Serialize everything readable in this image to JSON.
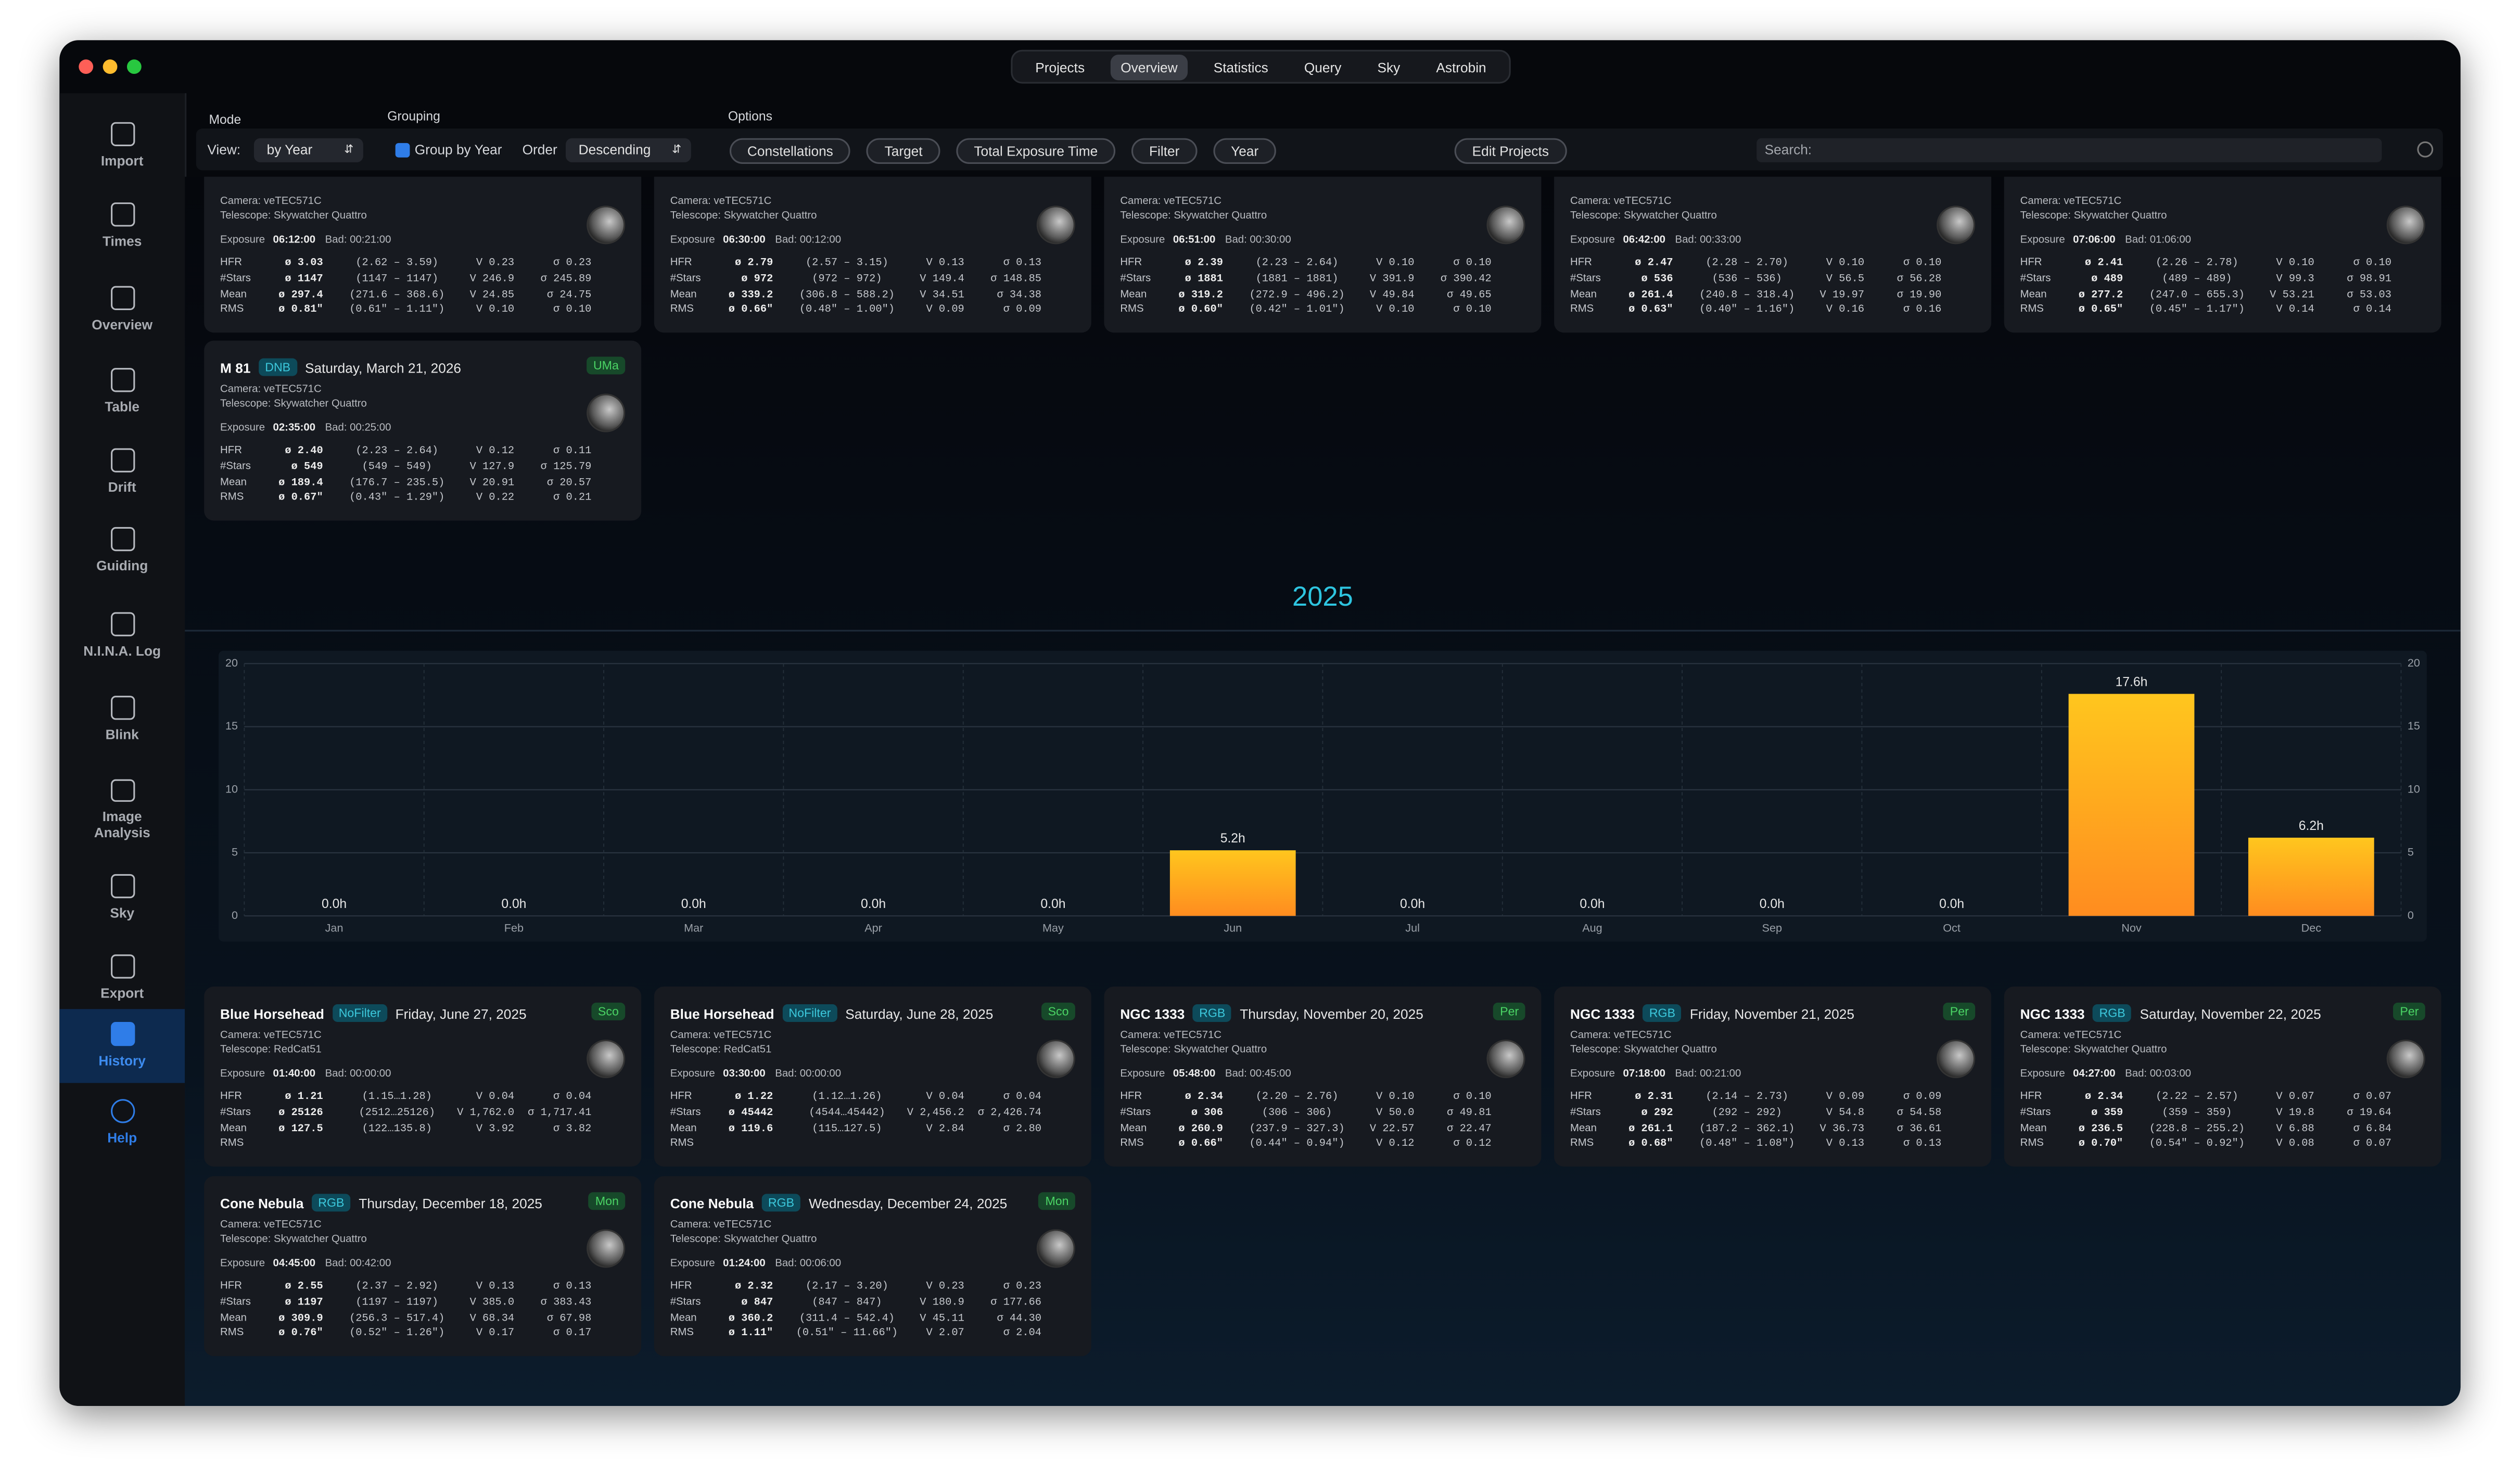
{
  "window": {
    "tabs": [
      "Projects",
      "Overview",
      "Statistics",
      "Query",
      "Sky",
      "Astrobin"
    ]
  },
  "sidebar": [
    "Import",
    "Times",
    "Overview",
    "Table",
    "Drift",
    "Guiding",
    "N.I.N.A. Log",
    "Blink",
    "Image Analysis",
    "Sky",
    "Export",
    "History",
    "Help"
  ],
  "toolbar": {
    "mode_label": "Mode",
    "view_label": "View:",
    "view_value": "by Year",
    "grouping_label": "Grouping",
    "group_by_year": "Group by Year",
    "order_label": "Order",
    "order_value": "Descending",
    "options_label": "Options",
    "options": [
      "Constellations",
      "Target",
      "Total Exposure Time",
      "Filter",
      "Year"
    ],
    "edit_projects": "Edit Projects",
    "search_placeholder": "Search:"
  },
  "cards_2026": [
    {
      "camera": "Camera: veTEC571C",
      "telescope": "Telescope: Skywatcher Quattro",
      "exposure_label": "Exposure",
      "exposure": "06:12:00",
      "bad": "Bad: 00:21:00",
      "stats": [
        [
          "HFR",
          "ø 3.03",
          "(2.62 – 3.59)",
          "V 0.23",
          "σ 0.23"
        ],
        [
          "#Stars",
          "ø 1147",
          "(1147 – 1147)",
          "V 246.9",
          "σ 245.89"
        ],
        [
          "Mean",
          "ø 297.4",
          "(271.6 – 368.6)",
          "V 24.85",
          "σ 24.75"
        ],
        [
          "RMS",
          "ø 0.81\"",
          "(0.61\" – 1.11\")",
          "V 0.10",
          "σ 0.10"
        ]
      ]
    },
    {
      "camera": "Camera: veTEC571C",
      "telescope": "Telescope: Skywatcher Quattro",
      "exposure_label": "Exposure",
      "exposure": "06:30:00",
      "bad": "Bad: 00:12:00",
      "stats": [
        [
          "HFR",
          "ø 2.79",
          "(2.57 – 3.15)",
          "V 0.13",
          "σ 0.13"
        ],
        [
          "#Stars",
          "ø 972",
          "(972 – 972)",
          "V 149.4",
          "σ 148.85"
        ],
        [
          "Mean",
          "ø 339.2",
          "(306.8 – 588.2)",
          "V 34.51",
          "σ 34.38"
        ],
        [
          "RMS",
          "ø 0.66\"",
          "(0.48\" – 1.00\")",
          "V 0.09",
          "σ 0.09"
        ]
      ]
    },
    {
      "camera": "Camera: veTEC571C",
      "telescope": "Telescope: Skywatcher Quattro",
      "exposure_label": "Exposure",
      "exposure": "06:51:00",
      "bad": "Bad: 00:30:00",
      "stats": [
        [
          "HFR",
          "ø 2.39",
          "(2.23 – 2.64)",
          "V 0.10",
          "σ 0.10"
        ],
        [
          "#Stars",
          "ø 1881",
          "(1881 – 1881)",
          "V 391.9",
          "σ 390.42"
        ],
        [
          "Mean",
          "ø 319.2",
          "(272.9 – 496.2)",
          "V 49.84",
          "σ 49.65"
        ],
        [
          "RMS",
          "ø 0.60\"",
          "(0.42\" – 1.01\")",
          "V 0.10",
          "σ 0.10"
        ]
      ]
    },
    {
      "camera": "Camera: veTEC571C",
      "telescope": "Telescope: Skywatcher Quattro",
      "exposure_label": "Exposure",
      "exposure": "06:42:00",
      "bad": "Bad: 00:33:00",
      "stats": [
        [
          "HFR",
          "ø 2.47",
          "(2.28 – 2.70)",
          "V 0.10",
          "σ 0.10"
        ],
        [
          "#Stars",
          "ø 536",
          "(536 – 536)",
          "V 56.5",
          "σ 56.28"
        ],
        [
          "Mean",
          "ø 261.4",
          "(240.8 – 318.4)",
          "V 19.97",
          "σ 19.90"
        ],
        [
          "RMS",
          "ø 0.63\"",
          "(0.40\" – 1.16\")",
          "V 0.16",
          "σ 0.16"
        ]
      ]
    },
    {
      "camera": "Camera: veTEC571C",
      "telescope": "Telescope: Skywatcher Quattro",
      "exposure_label": "Exposure",
      "exposure": "07:06:00",
      "bad": "Bad: 01:06:00",
      "stats": [
        [
          "HFR",
          "ø 2.41",
          "(2.26 – 2.78)",
          "V 0.10",
          "σ 0.10"
        ],
        [
          "#Stars",
          "ø 489",
          "(489 – 489)",
          "V 99.3",
          "σ 98.91"
        ],
        [
          "Mean",
          "ø 277.2",
          "(247.0 – 655.3)",
          "V 53.21",
          "σ 53.03"
        ],
        [
          "RMS",
          "ø 0.65\"",
          "(0.45\" – 1.17\")",
          "V 0.14",
          "σ 0.14"
        ]
      ]
    },
    {
      "title": "M 81",
      "filter": "DNB",
      "date": "Saturday, March 21, 2026",
      "constellation": "UMa",
      "camera": "Camera: veTEC571C",
      "telescope": "Telescope: Skywatcher Quattro",
      "exposure_label": "Exposure",
      "exposure": "02:35:00",
      "bad": "Bad: 00:25:00",
      "stats": [
        [
          "HFR",
          "ø 2.40",
          "(2.23 – 2.64)",
          "V 0.12",
          "σ 0.11"
        ],
        [
          "#Stars",
          "ø 549",
          "(549 – 549)",
          "V 127.9",
          "σ 125.79"
        ],
        [
          "Mean",
          "ø 189.4",
          "(176.7 – 235.5)",
          "V 20.91",
          "σ 20.57"
        ],
        [
          "RMS",
          "ø 0.67\"",
          "(0.43\" – 1.29\")",
          "V 0.22",
          "σ 0.21"
        ]
      ]
    }
  ],
  "year_heading": "2025",
  "chart_data": {
    "type": "bar",
    "categories": [
      "Jan",
      "Feb",
      "Mar",
      "Apr",
      "May",
      "Jun",
      "Jul",
      "Aug",
      "Sep",
      "Oct",
      "Nov",
      "Dec"
    ],
    "values": [
      0,
      0,
      0,
      0,
      0,
      5.2,
      0,
      0,
      0,
      0,
      17.6,
      6.2
    ],
    "value_labels": [
      "0.0h",
      "0.0h",
      "0.0h",
      "0.0h",
      "0.0h",
      "5.2h",
      "0.0h",
      "0.0h",
      "0.0h",
      "0.0h",
      "17.6h",
      "6.2h"
    ],
    "gradient": [
      "#ffc61e",
      "#ff8c1f"
    ],
    "ylim": [
      0,
      20
    ],
    "yticks": [
      0,
      5,
      10,
      15,
      20
    ],
    "y2lim": [
      0,
      20
    ],
    "y2ticks": [
      0,
      5,
      10,
      15,
      20
    ],
    "grid": true
  },
  "cards_2025": [
    {
      "title": "Blue Horsehead",
      "filter": "NoFilter",
      "date": "Friday, June 27, 2025",
      "constellation": "Sco",
      "camera": "Camera: veTEC571C",
      "telescope": "Telescope: RedCat51",
      "exposure_label": "Exposure",
      "exposure": "01:40:00",
      "bad": "Bad: 00:00:00",
      "stats": [
        [
          "HFR",
          "ø 1.21",
          "(1.15…1.28)",
          "V 0.04",
          "σ 0.04"
        ],
        [
          "#Stars",
          "ø 25126",
          "(2512…25126)",
          "V 1,762.0",
          "σ 1,717.41"
        ],
        [
          "Mean",
          "ø 127.5",
          "(122…135.8)",
          "V 3.92",
          "σ 3.82"
        ],
        [
          "RMS"
        ]
      ]
    },
    {
      "title": "Blue Horsehead",
      "filter": "NoFilter",
      "date": "Saturday, June 28, 2025",
      "constellation": "Sco",
      "camera": "Camera: veTEC571C",
      "telescope": "Telescope: RedCat51",
      "exposure_label": "Exposure",
      "exposure": "03:30:00",
      "bad": "Bad: 00:00:00",
      "stats": [
        [
          "HFR",
          "ø 1.22",
          "(1.12…1.26)",
          "V 0.04",
          "σ 0.04"
        ],
        [
          "#Stars",
          "ø 45442",
          "(4544…45442)",
          "V 2,456.2",
          "σ 2,426.74"
        ],
        [
          "Mean",
          "ø 119.6",
          "(115…127.5)",
          "V 2.84",
          "σ 2.80"
        ],
        [
          "RMS"
        ]
      ]
    },
    {
      "title": "NGC 1333",
      "filter": "RGB",
      "date": "Thursday, November 20, 2025",
      "constellation": "Per",
      "camera": "Camera: veTEC571C",
      "telescope": "Telescope: Skywatcher Quattro",
      "exposure_label": "Exposure",
      "exposure": "05:48:00",
      "bad": "Bad: 00:45:00",
      "stats": [
        [
          "HFR",
          "ø 2.34",
          "(2.20 – 2.76)",
          "V 0.10",
          "σ 0.10"
        ],
        [
          "#Stars",
          "ø 306",
          "(306 – 306)",
          "V 50.0",
          "σ 49.81"
        ],
        [
          "Mean",
          "ø 260.9",
          "(237.9 – 327.3)",
          "V 22.57",
          "σ 22.47"
        ],
        [
          "RMS",
          "ø 0.66\"",
          "(0.44\" – 0.94\")",
          "V 0.12",
          "σ 0.12"
        ]
      ]
    },
    {
      "title": "NGC 1333",
      "filter": "RGB",
      "date": "Friday, November 21, 2025",
      "constellation": "Per",
      "camera": "Camera: veTEC571C",
      "telescope": "Telescope: Skywatcher Quattro",
      "exposure_label": "Exposure",
      "exposure": "07:18:00",
      "bad": "Bad: 00:21:00",
      "stats": [
        [
          "HFR",
          "ø 2.31",
          "(2.14 – 2.73)",
          "V 0.09",
          "σ 0.09"
        ],
        [
          "#Stars",
          "ø 292",
          "(292 – 292)",
          "V 54.8",
          "σ 54.58"
        ],
        [
          "Mean",
          "ø 261.1",
          "(187.2 – 362.1)",
          "V 36.73",
          "σ 36.61"
        ],
        [
          "RMS",
          "ø 0.68\"",
          "(0.48\" – 1.08\")",
          "V 0.13",
          "σ 0.13"
        ]
      ]
    },
    {
      "title": "NGC 1333",
      "filter": "RGB",
      "date": "Saturday, November 22, 2025",
      "constellation": "Per",
      "camera": "Camera: veTEC571C",
      "telescope": "Telescope: Skywatcher Quattro",
      "exposure_label": "Exposure",
      "exposure": "04:27:00",
      "bad": "Bad: 00:03:00",
      "stats": [
        [
          "HFR",
          "ø 2.34",
          "(2.22 – 2.57)",
          "V 0.07",
          "σ 0.07"
        ],
        [
          "#Stars",
          "ø 359",
          "(359 – 359)",
          "V 19.8",
          "σ 19.64"
        ],
        [
          "Mean",
          "ø 236.5",
          "(228.8 – 255.2)",
          "V 6.88",
          "σ 6.84"
        ],
        [
          "RMS",
          "ø 0.70\"",
          "(0.54\" – 0.92\")",
          "V 0.08",
          "σ 0.07"
        ]
      ]
    },
    {
      "title": "Cone Nebula",
      "filter": "RGB",
      "date": "Thursday, December 18, 2025",
      "constellation": "Mon",
      "camera": "Camera: veTEC571C",
      "telescope": "Telescope: Skywatcher Quattro",
      "exposure_label": "Exposure",
      "exposure": "04:45:00",
      "bad": "Bad: 00:42:00",
      "stats": [
        [
          "HFR",
          "ø 2.55",
          "(2.37 – 2.92)",
          "V 0.13",
          "σ 0.13"
        ],
        [
          "#Stars",
          "ø 1197",
          "(1197 – 1197)",
          "V 385.0",
          "σ 383.43"
        ],
        [
          "Mean",
          "ø 309.9",
          "(256.3 – 517.4)",
          "V 68.34",
          "σ 67.98"
        ],
        [
          "RMS",
          "ø 0.76\"",
          "(0.52\" – 1.26\")",
          "V 0.17",
          "σ 0.17"
        ]
      ]
    },
    {
      "title": "Cone Nebula",
      "filter": "RGB",
      "date": "Wednesday, December 24, 2025",
      "constellation": "Mon",
      "camera": "Camera: veTEC571C",
      "telescope": "Telescope: Skywatcher Quattro",
      "exposure_label": "Exposure",
      "exposure": "01:24:00",
      "bad": "Bad: 00:06:00",
      "stats": [
        [
          "HFR",
          "ø 2.32",
          "(2.17 – 3.20)",
          "V 0.23",
          "σ 0.23"
        ],
        [
          "#Stars",
          "ø 847",
          "(847 – 847)",
          "V 180.9",
          "σ 177.66"
        ],
        [
          "Mean",
          "ø 360.2",
          "(311.4 – 542.4)",
          "V 45.11",
          "σ 44.30"
        ],
        [
          "RMS",
          "ø 1.11\"",
          "(0.51\" – 11.66\")",
          "V 2.07",
          "σ 2.04"
        ]
      ]
    }
  ]
}
